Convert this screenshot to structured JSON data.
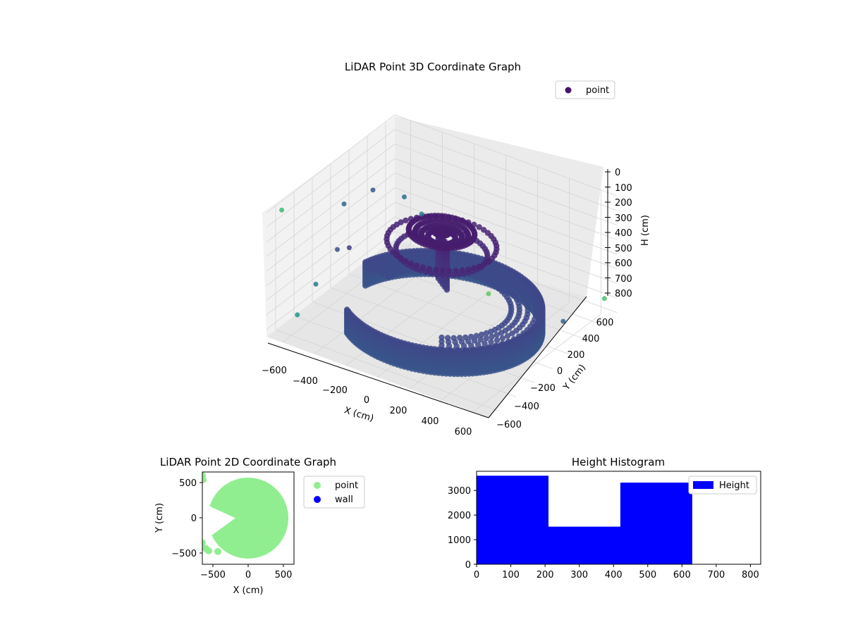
{
  "colors": {
    "point_3d": "#45136a",
    "point_2d": "#90ee90",
    "wall": "#0000ff",
    "histogram": "#0000ff",
    "pane": "#f2f2f2",
    "grid": "#d0d0d0"
  },
  "chart_data": [
    {
      "type": "scatter",
      "projection": "3d",
      "title": "LiDAR Point 3D Coordinate Graph",
      "xlabel": "X (cm)",
      "ylabel": "Y (cm)",
      "zlabel": "H (cm)",
      "xlim": [
        -700,
        700
      ],
      "ylim": [
        -700,
        700
      ],
      "zlim": [
        0,
        850
      ],
      "z_inverted": true,
      "x_ticks": [
        "−600",
        "−400",
        "−200",
        "0",
        "200",
        "400",
        "600"
      ],
      "y_ticks": [
        "−600",
        "−400",
        "−200",
        "0",
        "200",
        "400",
        "600"
      ],
      "z_ticks": [
        "0",
        "100",
        "200",
        "300",
        "400",
        "500",
        "600",
        "700",
        "800"
      ],
      "colormap": "viridis",
      "legend": {
        "position": "top-right",
        "entries": [
          "point"
        ]
      },
      "series": [
        {
          "name": "point",
          "shape": {
            "wall_arc": {
              "radius_cm": 550,
              "angle_from_deg": -130,
              "angle_to_deg": 170,
              "height_top_cm": 660,
              "height_bottom_cm": 830
            },
            "ceiling_ring": {
              "radius_cm": 180,
              "height_cm": 220
            },
            "stem": {
              "height_from_cm": 240,
              "height_to_cm": 560
            }
          },
          "outliers": [
            {
              "x": -650,
              "y": -620,
              "h": 0
            },
            {
              "x": -500,
              "y": -200,
              "h": 100
            },
            {
              "x": -520,
              "y": 150,
              "h": 180
            },
            {
              "x": -380,
              "y": 250,
              "h": 220
            },
            {
              "x": -300,
              "y": 300,
              "h": 330
            },
            {
              "x": -600,
              "y": -100,
              "h": 500
            },
            {
              "x": -600,
              "y": 30,
              "h": 550
            },
            {
              "x": -620,
              "y": -300,
              "h": 650
            },
            {
              "x": -650,
              "y": -450,
              "h": 800
            },
            {
              "x": 650,
              "y": 650,
              "h": 700
            },
            {
              "x": 650,
              "y": 200,
              "h": 640
            },
            {
              "x": 700,
              "y": -700,
              "h": 0
            }
          ]
        }
      ]
    },
    {
      "type": "scatter",
      "title": "LiDAR Point 2D Coordinate Graph",
      "xlabel": "X (cm)",
      "ylabel": "Y (cm)",
      "xlim": [
        -650,
        650
      ],
      "ylim": [
        -650,
        650
      ],
      "x_ticks": [
        "−500",
        "0",
        "500"
      ],
      "y_ticks": [
        "−500",
        "0",
        "500"
      ],
      "legend": {
        "position": "outside-right",
        "entries": [
          "point",
          "wall"
        ]
      },
      "series": [
        {
          "name": "point",
          "shape": "disc of radius 560 cm centered at 0,0 with a wedge cut open toward −X (roughly 150°–210°) and scattered outer points"
        },
        {
          "name": "wall",
          "values": []
        }
      ]
    },
    {
      "type": "bar",
      "subtype": "histogram",
      "title": "Height Histogram",
      "xlabel": "",
      "ylabel": "",
      "xlim": [
        0,
        830
      ],
      "ylim": [
        0,
        3780
      ],
      "x_ticks": [
        "0",
        "100",
        "200",
        "300",
        "400",
        "500",
        "600",
        "700",
        "800"
      ],
      "y_ticks": [
        "0",
        "1000",
        "2000",
        "3000"
      ],
      "legend": {
        "position": "top-right",
        "entries": [
          "Height"
        ]
      },
      "bins": [
        {
          "from": 0,
          "to": 210,
          "count": 3600
        },
        {
          "from": 210,
          "to": 420,
          "count": 1530
        },
        {
          "from": 420,
          "to": 630,
          "count": 3320
        }
      ]
    }
  ]
}
